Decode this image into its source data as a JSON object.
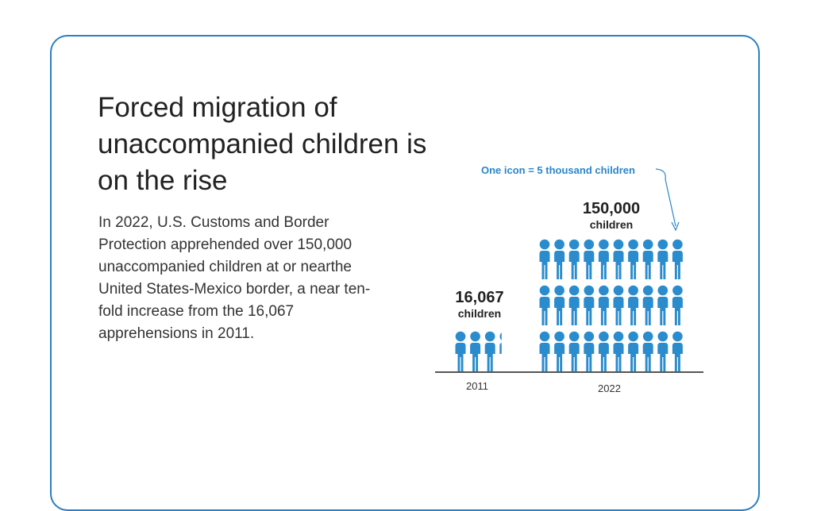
{
  "title": "Forced migration of unaccompanied children is on the rise",
  "body": "In 2022, U.S. Customs and Border Protection apprehended over 150,000 unaccompanied children at or nearthe United States-Mexico border, a near ten-fold increase from the 16,067 apprehensions in 2011.",
  "chart_data": {
    "type": "bar",
    "style": "pictogram",
    "note": "One icon = 5 thousand children",
    "icon_value": 5000,
    "categories": [
      "2011",
      "2022"
    ],
    "values": [
      16067,
      150000
    ],
    "labels": [
      {
        "number": "16,067",
        "unit": "children"
      },
      {
        "number": "150,000",
        "unit": "children"
      }
    ],
    "colors": {
      "icon": "#2a8ccd",
      "accent": "#2b7fc4"
    }
  }
}
